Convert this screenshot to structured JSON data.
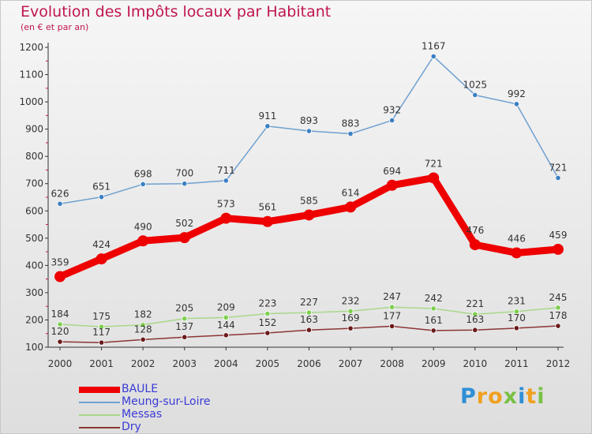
{
  "title": "Evolution des Impôts locaux par Habitant",
  "subtitle": "(en € et par an)",
  "logo": {
    "text": "Proxiti",
    "colors": [
      "#2f8fd6",
      "#f0a020",
      "#f0a020",
      "#79c043",
      "#2f8fd6",
      "#f0a020",
      "#79c043"
    ]
  },
  "chart_data": {
    "type": "line",
    "x": [
      "2000",
      "2001",
      "2002",
      "2003",
      "2004",
      "2005",
      "2006",
      "2007",
      "2008",
      "2009",
      "2010",
      "2011",
      "2012"
    ],
    "ylim": [
      100,
      1200
    ],
    "yticks": [
      "100",
      "200",
      "300",
      "400",
      "500",
      "600",
      "700",
      "800",
      "900",
      "1000",
      "1100",
      "1200"
    ],
    "grid": false,
    "legend_position": "bottom-left",
    "series": [
      {
        "name": "Meung-sur-Loire",
        "values": [
          626,
          651,
          698,
          700,
          711,
          911,
          893,
          883,
          932,
          1167,
          1025,
          992,
          721
        ],
        "color": "#6fa0d0",
        "marker": "#3a7fc1"
      },
      {
        "name": "BAULE",
        "values": [
          359,
          424,
          490,
          502,
          573,
          561,
          585,
          614,
          694,
          721,
          476,
          446,
          459
        ],
        "color": "#ee0000",
        "marker": "#ee0000",
        "bold": true
      },
      {
        "name": "Messas",
        "values": [
          184,
          175,
          182,
          205,
          209,
          223,
          227,
          232,
          247,
          242,
          221,
          231,
          245
        ],
        "color": "#a8d88a",
        "marker": "#7fcf4f"
      },
      {
        "name": "Dry",
        "values": [
          120,
          117,
          128,
          137,
          144,
          152,
          163,
          169,
          177,
          161,
          163,
          170,
          178
        ],
        "color": "#8b3535",
        "marker": "#6b1a1a"
      }
    ],
    "legend_order": [
      "BAULE",
      "Meung-sur-Loire",
      "Messas",
      "Dry"
    ]
  }
}
